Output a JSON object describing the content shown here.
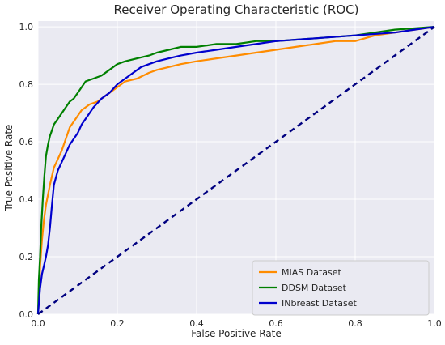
{
  "chart_data": {
    "type": "line",
    "title": "Receiver Operating Characteristic (ROC)",
    "xlabel": "False Positive Rate",
    "ylabel": "True Positive Rate",
    "xlim": [
      0.0,
      1.0
    ],
    "ylim": [
      0.0,
      1.02
    ],
    "xticks": [
      "0.0",
      "0.2",
      "0.4",
      "0.6",
      "0.8",
      "1.0"
    ],
    "yticks": [
      "0.0",
      "0.2",
      "0.4",
      "0.6",
      "0.8",
      "1.0"
    ],
    "grid": true,
    "legend_position": "lower-right",
    "background_color": "#eaeaf2",
    "series": [
      {
        "name": "MIAS Dataset",
        "color": "#ff8c00",
        "x": [
          0,
          0.003,
          0.006,
          0.01,
          0.015,
          0.02,
          0.03,
          0.04,
          0.05,
          0.06,
          0.07,
          0.08,
          0.09,
          0.1,
          0.11,
          0.12,
          0.13,
          0.15,
          0.17,
          0.2,
          0.22,
          0.25,
          0.28,
          0.3,
          0.33,
          0.36,
          0.4,
          0.45,
          0.5,
          0.55,
          0.6,
          0.65,
          0.7,
          0.75,
          0.8,
          0.85,
          0.9,
          0.95,
          1.0
        ],
        "y": [
          0,
          0.1,
          0.18,
          0.26,
          0.33,
          0.38,
          0.45,
          0.51,
          0.54,
          0.57,
          0.61,
          0.65,
          0.67,
          0.69,
          0.71,
          0.72,
          0.73,
          0.74,
          0.76,
          0.79,
          0.81,
          0.82,
          0.84,
          0.85,
          0.86,
          0.87,
          0.88,
          0.89,
          0.9,
          0.91,
          0.92,
          0.93,
          0.94,
          0.95,
          0.95,
          0.97,
          0.98,
          0.99,
          1.0
        ]
      },
      {
        "name": "DDSM Dataset",
        "color": "#008000",
        "x": [
          0,
          0.002,
          0.005,
          0.008,
          0.012,
          0.016,
          0.02,
          0.025,
          0.03,
          0.035,
          0.04,
          0.05,
          0.06,
          0.07,
          0.08,
          0.09,
          0.1,
          0.12,
          0.14,
          0.16,
          0.18,
          0.2,
          0.22,
          0.25,
          0.28,
          0.3,
          0.33,
          0.36,
          0.4,
          0.45,
          0.5,
          0.55,
          0.6,
          0.7,
          0.8,
          0.9,
          1.0
        ],
        "y": [
          0,
          0.12,
          0.2,
          0.3,
          0.4,
          0.48,
          0.55,
          0.59,
          0.62,
          0.64,
          0.66,
          0.68,
          0.7,
          0.72,
          0.74,
          0.75,
          0.77,
          0.81,
          0.82,
          0.83,
          0.85,
          0.87,
          0.88,
          0.89,
          0.9,
          0.91,
          0.92,
          0.93,
          0.93,
          0.94,
          0.94,
          0.95,
          0.95,
          0.96,
          0.97,
          0.99,
          1.0
        ]
      },
      {
        "name": "INbreast Dataset",
        "color": "#0000cd",
        "x": [
          0,
          0.005,
          0.01,
          0.015,
          0.02,
          0.025,
          0.03,
          0.035,
          0.04,
          0.05,
          0.06,
          0.07,
          0.08,
          0.09,
          0.1,
          0.11,
          0.12,
          0.14,
          0.16,
          0.18,
          0.2,
          0.22,
          0.24,
          0.26,
          0.28,
          0.3,
          0.33,
          0.36,
          0.4,
          0.45,
          0.5,
          0.55,
          0.6,
          0.7,
          0.8,
          0.9,
          0.95,
          1.0
        ],
        "y": [
          0,
          0.09,
          0.14,
          0.17,
          0.2,
          0.24,
          0.3,
          0.38,
          0.45,
          0.5,
          0.53,
          0.56,
          0.59,
          0.61,
          0.63,
          0.66,
          0.68,
          0.72,
          0.75,
          0.77,
          0.8,
          0.82,
          0.84,
          0.86,
          0.87,
          0.88,
          0.89,
          0.9,
          0.91,
          0.92,
          0.93,
          0.94,
          0.95,
          0.96,
          0.97,
          0.98,
          0.99,
          1.0
        ]
      },
      {
        "name": "",
        "color": "#000080",
        "dashed": true,
        "x": [
          0,
          1
        ],
        "y": [
          0,
          1
        ]
      }
    ]
  }
}
